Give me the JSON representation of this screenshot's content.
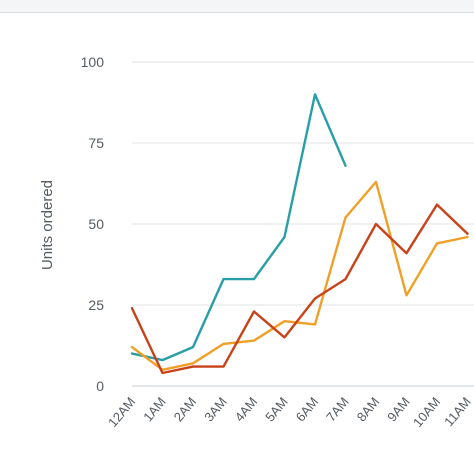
{
  "chart_data": {
    "type": "line",
    "title": "",
    "xlabel": "",
    "ylabel": "Units ordered",
    "ylim": [
      0,
      100
    ],
    "yticks": [
      0,
      25,
      50,
      75,
      100
    ],
    "grid": true,
    "categories": [
      "12AM",
      "1AM",
      "2AM",
      "3AM",
      "4AM",
      "5AM",
      "6AM",
      "7AM",
      "8AM",
      "9AM",
      "10AM",
      "11AM"
    ],
    "series": [
      {
        "color": "#2a9ea6",
        "values": [
          10,
          8,
          12,
          33,
          33,
          46,
          90,
          68,
          null,
          null,
          null,
          null
        ]
      },
      {
        "color": "#f0a028",
        "values": [
          12,
          5,
          7,
          13,
          14,
          20,
          19,
          52,
          63,
          28,
          44,
          46
        ]
      },
      {
        "color": "#c8421a",
        "values": [
          24,
          4,
          6,
          6,
          23,
          15,
          27,
          33,
          50,
          41,
          56,
          47
        ]
      }
    ]
  }
}
